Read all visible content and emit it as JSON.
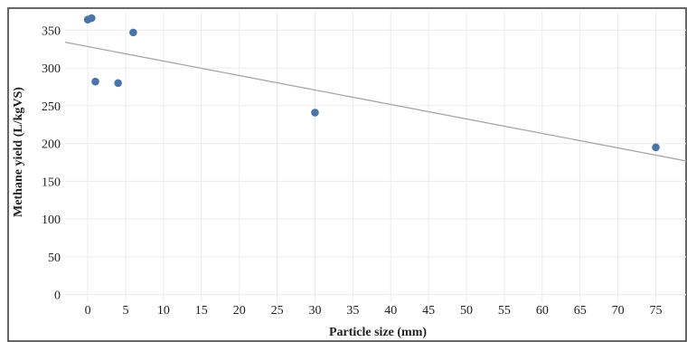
{
  "chart_data": {
    "type": "scatter",
    "title": "",
    "xlabel": "Particle size (mm)",
    "ylabel": "Methane yield (L/kgVS)",
    "xlim": [
      -3,
      79
    ],
    "ylim": [
      -10,
      378
    ],
    "xticks": [
      0,
      5,
      10,
      15,
      20,
      25,
      30,
      35,
      40,
      45,
      50,
      55,
      60,
      65,
      70,
      75
    ],
    "yticks": [
      0,
      50,
      100,
      150,
      200,
      250,
      300,
      350
    ],
    "grid": true,
    "legend": "none",
    "points": [
      {
        "x": 0,
        "y": 364
      },
      {
        "x": 0.5,
        "y": 366
      },
      {
        "x": 1,
        "y": 282
      },
      {
        "x": 4,
        "y": 280
      },
      {
        "x": 6,
        "y": 347
      },
      {
        "x": 30,
        "y": 241
      },
      {
        "x": 75,
        "y": 195
      }
    ],
    "trendline": {
      "type": "linear",
      "x": [
        -4,
        79
      ],
      "y": [
        336,
        177
      ]
    },
    "colors": {
      "point": "#4a73a8",
      "trendline": "#a6a6a6",
      "grid": "#ececec",
      "frame": "#333333"
    }
  }
}
